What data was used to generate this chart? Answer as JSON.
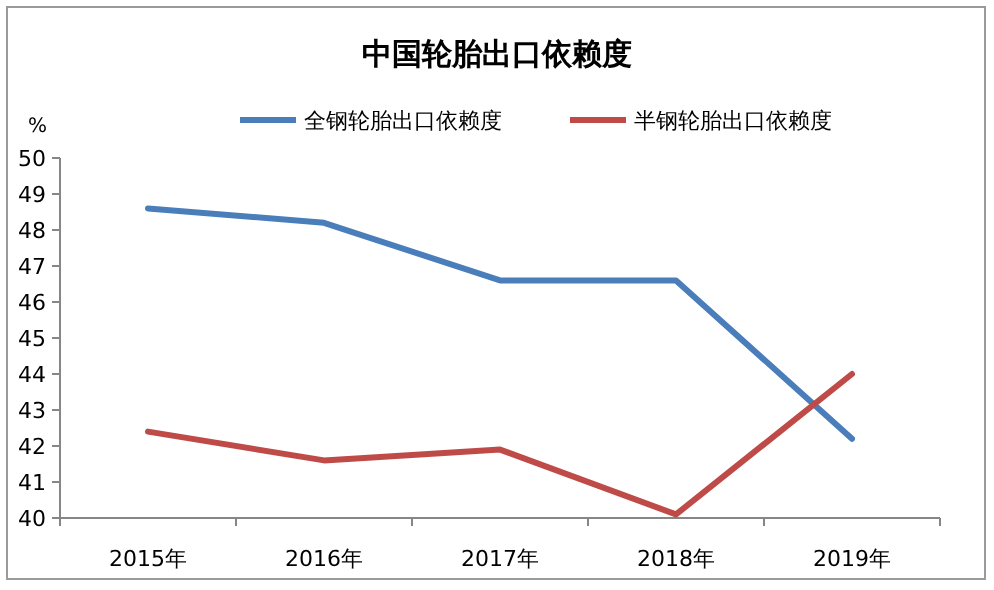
{
  "chart_data": {
    "type": "line",
    "title": "中国轮胎出口依赖度",
    "ylabel": "%",
    "categories": [
      "2015年",
      "2016年",
      "2017年",
      "2018年",
      "2019年"
    ],
    "series": [
      {
        "name": "全钢轮胎出口依赖度",
        "color": "#4a7ebb",
        "values": [
          48.6,
          48.2,
          46.6,
          46.6,
          42.2
        ]
      },
      {
        "name": "半钢轮胎出口依赖度",
        "color": "#be4b48",
        "values": [
          42.4,
          41.6,
          41.9,
          40.1,
          44.0
        ]
      }
    ],
    "ylim": [
      40,
      50
    ],
    "yticks": [
      40,
      41,
      42,
      43,
      44,
      45,
      46,
      47,
      48,
      49,
      50
    ],
    "grid": false,
    "legend": "top",
    "marker": "none",
    "line_style": "solid"
  }
}
